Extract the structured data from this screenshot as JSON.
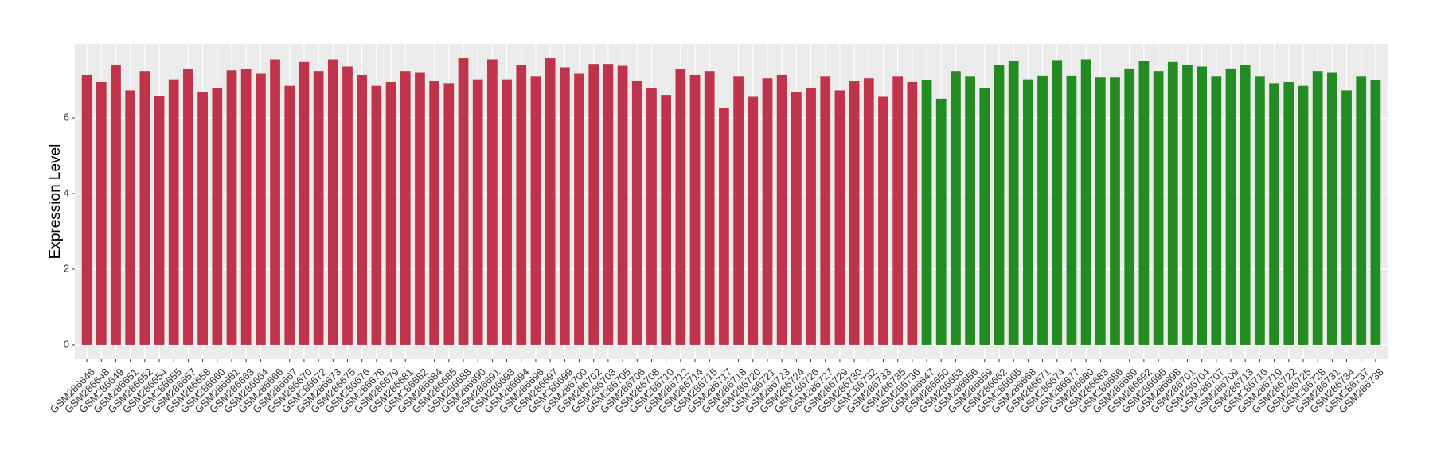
{
  "chart_data": {
    "type": "bar",
    "y_label": "Expression Level",
    "categories": [
      "GSM286646",
      "GSM286648",
      "GSM286649",
      "GSM286651",
      "GSM286652",
      "GSM286654",
      "GSM286655",
      "GSM286657",
      "GSM286658",
      "GSM286660",
      "GSM286661",
      "GSM286663",
      "GSM286664",
      "GSM286666",
      "GSM286667",
      "GSM286670",
      "GSM286672",
      "GSM286673",
      "GSM286675",
      "GSM286676",
      "GSM286678",
      "GSM286679",
      "GSM286681",
      "GSM286682",
      "GSM286684",
      "GSM286685",
      "GSM286688",
      "GSM286690",
      "GSM286691",
      "GSM286693",
      "GSM286694",
      "GSM286696",
      "GSM286697",
      "GSM286699",
      "GSM286700",
      "GSM286702",
      "GSM286703",
      "GSM286705",
      "GSM286706",
      "GSM286708",
      "GSM286710",
      "GSM286712",
      "GSM286714",
      "GSM286715",
      "GSM286717",
      "GSM286718",
      "GSM286720",
      "GSM286721",
      "GSM286723",
      "GSM286724",
      "GSM286726",
      "GSM286727",
      "GSM286729",
      "GSM286730",
      "GSM286732",
      "GSM286733",
      "GSM286735",
      "GSM286736",
      "GSM286647",
      "GSM286650",
      "GSM286653",
      "GSM286656",
      "GSM286659",
      "GSM286662",
      "GSM286665",
      "GSM286668",
      "GSM286671",
      "GSM286674",
      "GSM286677",
      "GSM286680",
      "GSM286683",
      "GSM286686",
      "GSM286689",
      "GSM286692",
      "GSM286695",
      "GSM286698",
      "GSM286701",
      "GSM286704",
      "GSM286707",
      "GSM286709",
      "GSM286713",
      "GSM286716",
      "GSM286719",
      "GSM286722",
      "GSM286725",
      "GSM286728",
      "GSM286731",
      "GSM286734",
      "GSM286737",
      "GSM286738"
    ],
    "values": [
      7.14,
      6.95,
      7.41,
      6.73,
      7.24,
      6.59,
      7.02,
      7.29,
      6.68,
      6.8,
      7.26,
      7.29,
      7.17,
      7.55,
      6.85,
      7.48,
      7.24,
      7.55,
      7.36,
      7.14,
      6.85,
      6.95,
      7.24,
      7.19,
      6.97,
      6.92,
      7.58,
      7.02,
      7.55,
      7.02,
      7.41,
      7.09,
      7.58,
      7.34,
      7.17,
      7.43,
      7.43,
      7.38,
      6.97,
      6.8,
      6.61,
      7.29,
      7.14,
      7.24,
      6.27,
      7.09,
      6.56,
      7.05,
      7.14,
      6.68,
      6.78,
      7.09,
      6.73,
      6.97,
      7.05,
      6.56,
      7.09,
      6.95,
      7.0,
      6.51,
      7.24,
      7.09,
      6.78,
      7.41,
      7.51,
      7.02,
      7.12,
      7.53,
      7.12,
      7.55,
      7.07,
      7.07,
      7.31,
      7.51,
      7.24,
      7.48,
      7.41,
      7.36,
      7.09,
      7.31,
      7.41,
      7.09,
      6.92,
      6.95,
      6.85,
      7.24,
      7.19,
      6.73,
      7.09,
      7.0
    ],
    "colors": [
      "#c0344b",
      "#c0344b",
      "#c0344b",
      "#c0344b",
      "#c0344b",
      "#c0344b",
      "#c0344b",
      "#c0344b",
      "#c0344b",
      "#c0344b",
      "#c0344b",
      "#c0344b",
      "#c0344b",
      "#c0344b",
      "#c0344b",
      "#c0344b",
      "#c0344b",
      "#c0344b",
      "#c0344b",
      "#c0344b",
      "#c0344b",
      "#c0344b",
      "#c0344b",
      "#c0344b",
      "#c0344b",
      "#c0344b",
      "#c0344b",
      "#c0344b",
      "#c0344b",
      "#c0344b",
      "#c0344b",
      "#c0344b",
      "#c0344b",
      "#c0344b",
      "#c0344b",
      "#c0344b",
      "#c0344b",
      "#c0344b",
      "#c0344b",
      "#c0344b",
      "#c0344b",
      "#c0344b",
      "#c0344b",
      "#c0344b",
      "#c0344b",
      "#c0344b",
      "#c0344b",
      "#c0344b",
      "#c0344b",
      "#c0344b",
      "#c0344b",
      "#c0344b",
      "#c0344b",
      "#c0344b",
      "#c0344b",
      "#c0344b",
      "#c0344b",
      "#c0344b",
      "#228b22",
      "#228b22",
      "#228b22",
      "#228b22",
      "#228b22",
      "#228b22",
      "#228b22",
      "#228b22",
      "#228b22",
      "#228b22",
      "#228b22",
      "#228b22",
      "#228b22",
      "#228b22",
      "#228b22",
      "#228b22",
      "#228b22",
      "#228b22",
      "#228b22",
      "#228b22",
      "#228b22",
      "#228b22",
      "#228b22",
      "#228b22",
      "#228b22",
      "#228b22",
      "#228b22",
      "#228b22",
      "#228b22",
      "#228b22",
      "#228b22",
      "#228b22"
    ],
    "ylim": [
      -0.38,
      7.96
    ],
    "yticks": [
      0,
      2,
      4,
      6
    ],
    "grid": true
  }
}
